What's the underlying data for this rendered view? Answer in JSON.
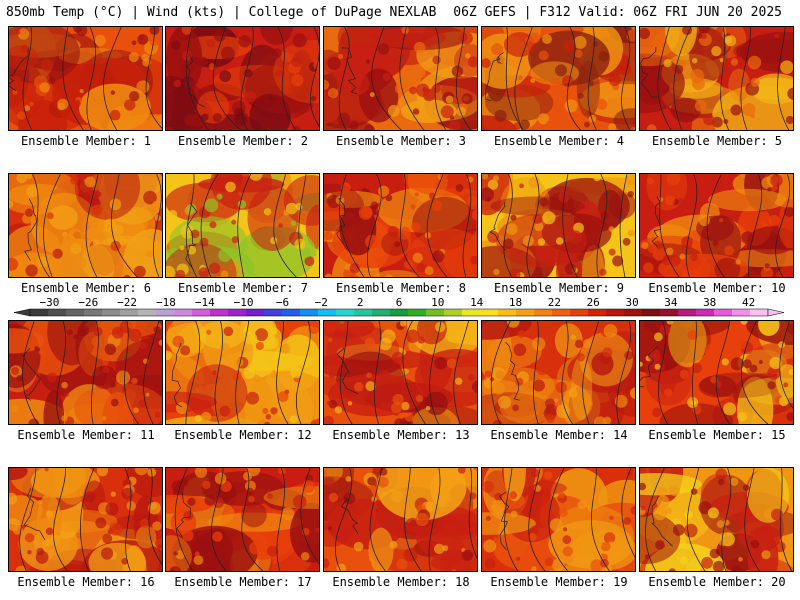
{
  "header": {
    "left": "850mb Temp (°C) | Wind (kts) | College of DuPage NEXLAB",
    "right": "06Z GEFS | F312 Valid: 06Z FRI JUN 20 2025"
  },
  "members": [
    {
      "label": "Ensemble Member: 1",
      "palette": [
        "#e8500c",
        "#c8200a",
        "#f08a10",
        "#9a1010"
      ]
    },
    {
      "label": "Ensemble Member: 2",
      "palette": [
        "#c81e12",
        "#9a1010",
        "#e8400a",
        "#7a0c14"
      ]
    },
    {
      "label": "Ensemble Member: 3",
      "palette": [
        "#ea6a0e",
        "#f2a016",
        "#c82012",
        "#9a1010"
      ]
    },
    {
      "label": "Ensemble Member: 4",
      "palette": [
        "#e8520c",
        "#c8200a",
        "#f09612",
        "#8a2010"
      ]
    },
    {
      "label": "Ensemble Member: 5",
      "palette": [
        "#c81e12",
        "#9a1010",
        "#ea6a0e",
        "#f2b416"
      ]
    },
    {
      "label": "Ensemble Member: 6",
      "palette": [
        "#d8300c",
        "#f08a10",
        "#b81810",
        "#f2a016"
      ]
    },
    {
      "label": "Ensemble Member: 7",
      "palette": [
        "#f4c418",
        "#f09612",
        "#c82012",
        "#8ec428"
      ]
    },
    {
      "label": "Ensemble Member: 8",
      "palette": [
        "#c81e12",
        "#9a1010",
        "#e8400a",
        "#f08a10"
      ]
    },
    {
      "label": "Ensemble Member: 9",
      "palette": [
        "#f4c418",
        "#f09612",
        "#c82012",
        "#9a1010"
      ]
    },
    {
      "label": "Ensemble Member: 10",
      "palette": [
        "#c81e12",
        "#e8400a",
        "#9a1010",
        "#f08a10"
      ]
    },
    {
      "label": "Ensemble Member: 11",
      "palette": [
        "#c81e12",
        "#e8500c",
        "#9a1010",
        "#f08a10"
      ]
    },
    {
      "label": "Ensemble Member: 12",
      "palette": [
        "#e8400a",
        "#f4c418",
        "#c82012",
        "#f09612"
      ]
    },
    {
      "label": "Ensemble Member: 13",
      "palette": [
        "#e8500c",
        "#f4b416",
        "#c82012",
        "#9a1010"
      ]
    },
    {
      "label": "Ensemble Member: 14",
      "palette": [
        "#d8300c",
        "#f08a10",
        "#b81810",
        "#f2a016"
      ]
    },
    {
      "label": "Ensemble Member: 15",
      "palette": [
        "#e8400a",
        "#f4c418",
        "#c82012",
        "#9a1010"
      ]
    },
    {
      "label": "Ensemble Member: 16",
      "palette": [
        "#d8300c",
        "#f08a10",
        "#b81810",
        "#f2a016"
      ]
    },
    {
      "label": "Ensemble Member: 17",
      "palette": [
        "#c81e12",
        "#e8400a",
        "#9a1010",
        "#f08a10"
      ]
    },
    {
      "label": "Ensemble Member: 18",
      "palette": [
        "#e8500c",
        "#f2a016",
        "#c82012",
        "#9a1010"
      ]
    },
    {
      "label": "Ensemble Member: 19",
      "palette": [
        "#d8300c",
        "#f09612",
        "#c82012",
        "#e8500c"
      ]
    },
    {
      "label": "Ensemble Member: 20",
      "palette": [
        "#f09612",
        "#c82012",
        "#9a1010",
        "#f4d21a"
      ]
    }
  ],
  "colorbar": {
    "ticks": [
      "−30",
      "−26",
      "−22",
      "−18",
      "−14",
      "−10",
      "−6",
      "−2",
      "2",
      "6",
      "10",
      "14",
      "18",
      "22",
      "26",
      "30",
      "34",
      "38",
      "42"
    ],
    "colors": [
      "#3c3c3c",
      "#505050",
      "#646464",
      "#787878",
      "#8c8c8c",
      "#a0a0a0",
      "#b4b4b4",
      "#b9a0d6",
      "#cc88dd",
      "#d060d8",
      "#c030d0",
      "#a020d0",
      "#7020d0",
      "#4040e0",
      "#2060f0",
      "#1090f8",
      "#10c0f8",
      "#20d8d0",
      "#20c8a0",
      "#20b070",
      "#10a040",
      "#30b020",
      "#70c020",
      "#b0d020",
      "#e8e820",
      "#f8e018",
      "#f8c010",
      "#f8a010",
      "#f88010",
      "#f06010",
      "#e84008",
      "#d82008",
      "#c01010",
      "#a01010",
      "#800c14",
      "#98102c",
      "#b81878",
      "#d028b0",
      "#e858d8",
      "#f090e8",
      "#f8c0f0"
    ],
    "min": -32,
    "max": 44
  }
}
